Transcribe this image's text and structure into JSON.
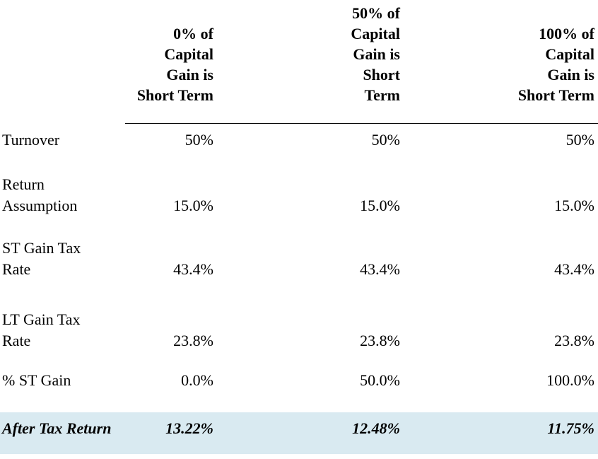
{
  "table": {
    "corner_header": "",
    "columns": [
      {
        "header": "0% of\nCapital\nGain is\nShort Term"
      },
      {
        "header": "50% of\nCapital\nGain is\nShort\nTerm"
      },
      {
        "header": "100% of\nCapital\nGain is\nShort Term"
      }
    ],
    "rows": [
      {
        "label": "Turnover",
        "values": [
          "50%",
          "50%",
          "50%"
        ]
      },
      {
        "label": "Return\nAssumption",
        "values": [
          "15.0%",
          "15.0%",
          "15.0%"
        ]
      },
      {
        "label": "ST Gain Tax\nRate",
        "values": [
          "43.4%",
          "43.4%",
          "43.4%"
        ]
      },
      {
        "label": "LT Gain Tax\nRate",
        "values": [
          "23.8%",
          "23.8%",
          "23.8%"
        ]
      },
      {
        "label": "% ST Gain",
        "values": [
          "0.0%",
          "50.0%",
          "100.0%"
        ]
      }
    ],
    "summary_row": {
      "label": "After Tax Return",
      "values": [
        "13.22%",
        "12.48%",
        "11.75%"
      ]
    },
    "colors": {
      "highlight_background": "#d9eaf1",
      "text": "#000000",
      "header_rule": "#000000",
      "page_background": "#ffffff"
    }
  }
}
